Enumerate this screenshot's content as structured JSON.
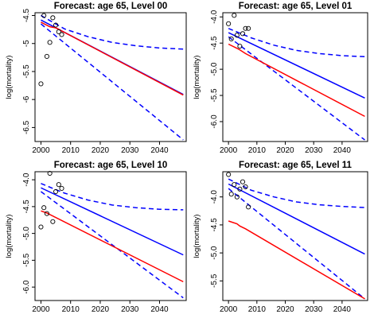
{
  "chart_data": [
    {
      "type": "line",
      "title": "Forecast: age 65, Level 00",
      "xlabel": "",
      "ylabel": "log(mortality)",
      "xlim": [
        1998,
        2049
      ],
      "ylim": [
        -6.75,
        -4.45
      ],
      "xticks": [
        2000,
        2010,
        2020,
        2030,
        2040
      ],
      "yticks": [
        -4.5,
        -5,
        -5.5,
        -6,
        -6.5
      ],
      "ytick_labels": [
        "-4.5",
        "-5",
        "-5.5",
        "-6",
        "-6.5"
      ],
      "observed": {
        "x": [
          2000,
          2001,
          2002,
          2003,
          2004,
          2005,
          2006,
          2007
        ],
        "y": [
          -5.72,
          -4.5,
          -5.23,
          -4.98,
          -4.54,
          -4.67,
          -4.79,
          -4.84
        ]
      },
      "series": [
        {
          "role": "forecast",
          "color": "#0000ff",
          "dash": "solid",
          "x": [
            2000,
            2048
          ],
          "y": [
            -4.58,
            -5.91
          ]
        },
        {
          "role": "upper-band",
          "color": "#0000ff",
          "dash": "dashed",
          "x": [
            2000,
            2008,
            2016,
            2024,
            2032,
            2040,
            2048
          ],
          "y": [
            -4.5,
            -4.74,
            -4.88,
            -4.98,
            -5.04,
            -5.08,
            -5.1
          ]
        },
        {
          "role": "lower-band",
          "color": "#0000ff",
          "dash": "dashed",
          "x": [
            2000,
            2048
          ],
          "y": [
            -4.65,
            -6.72
          ]
        },
        {
          "role": "fitted",
          "color": "#ff0000",
          "dash": "solid",
          "x": [
            2000,
            2003,
            2005,
            2048
          ],
          "y": [
            -4.62,
            -4.7,
            -4.72,
            -5.92
          ]
        }
      ]
    },
    {
      "type": "line",
      "title": "Forecast: age 65, Level 01",
      "xlabel": "",
      "ylabel": "log(mortality)",
      "xlim": [
        1998,
        2049
      ],
      "ylim": [
        -6.38,
        -3.92
      ],
      "xticks": [
        2000,
        2010,
        2020,
        2030,
        2040
      ],
      "yticks": [
        -4,
        -4.5,
        -5,
        -5.5,
        -6
      ],
      "ytick_labels": [
        "-4.0",
        "-4.5",
        "-5.0",
        "-5.5",
        "-6.0"
      ],
      "observed": {
        "x": [
          2000,
          2001,
          2002,
          2003,
          2004,
          2005,
          2006,
          2007
        ],
        "y": [
          -4.13,
          -4.42,
          -3.97,
          -4.35,
          -4.56,
          -4.32,
          -4.22,
          -4.22
        ]
      },
      "series": [
        {
          "role": "forecast",
          "color": "#0000ff",
          "dash": "solid",
          "x": [
            2000,
            2048
          ],
          "y": [
            -4.3,
            -5.55
          ]
        },
        {
          "role": "upper-band",
          "color": "#0000ff",
          "dash": "dashed",
          "x": [
            2000,
            2008,
            2016,
            2024,
            2032,
            2040,
            2048
          ],
          "y": [
            -4.22,
            -4.4,
            -4.54,
            -4.64,
            -4.7,
            -4.74,
            -4.76
          ]
        },
        {
          "role": "lower-band",
          "color": "#0000ff",
          "dash": "dashed",
          "x": [
            2000,
            2048
          ],
          "y": [
            -4.38,
            -6.35
          ]
        },
        {
          "role": "fitted",
          "color": "#ff0000",
          "dash": "solid",
          "x": [
            2000,
            2003,
            2004,
            2006,
            2048
          ],
          "y": [
            -4.52,
            -4.6,
            -4.63,
            -4.7,
            -5.9
          ]
        }
      ]
    },
    {
      "type": "line",
      "title": "Forecast: age 65, Level 10",
      "xlabel": "",
      "ylabel": "log(mortality)",
      "xlim": [
        1998,
        2049
      ],
      "ylim": [
        -6.25,
        -3.85
      ],
      "xticks": [
        2000,
        2010,
        2020,
        2030,
        2040
      ],
      "yticks": [
        -4,
        -4.5,
        -5,
        -5.5,
        -6
      ],
      "ytick_labels": [
        "-4.0",
        "-4.5",
        "-5.0",
        "-5.5",
        "-6.0"
      ],
      "observed": {
        "x": [
          2000,
          2001,
          2002,
          2003,
          2004,
          2005,
          2006,
          2007
        ],
        "y": [
          -4.88,
          -4.52,
          -4.63,
          -3.88,
          -4.78,
          -4.22,
          -4.09,
          -4.16
        ]
      },
      "series": [
        {
          "role": "forecast",
          "color": "#0000ff",
          "dash": "solid",
          "x": [
            2000,
            2048
          ],
          "y": [
            -4.15,
            -5.4
          ]
        },
        {
          "role": "upper-band",
          "color": "#0000ff",
          "dash": "dashed",
          "x": [
            2000,
            2008,
            2016,
            2024,
            2032,
            2040,
            2048
          ],
          "y": [
            -4.07,
            -4.25,
            -4.38,
            -4.47,
            -4.52,
            -4.55,
            -4.56
          ]
        },
        {
          "role": "lower-band",
          "color": "#0000ff",
          "dash": "dashed",
          "x": [
            2000,
            2048
          ],
          "y": [
            -4.22,
            -6.2
          ]
        },
        {
          "role": "fitted",
          "color": "#ff0000",
          "dash": "solid",
          "x": [
            2000,
            2002,
            2048
          ],
          "y": [
            -4.58,
            -4.62,
            -5.9
          ]
        }
      ]
    },
    {
      "type": "line",
      "title": "Forecast: age 65, Level 11",
      "xlabel": "",
      "ylabel": "log(mortality)",
      "xlim": [
        1998,
        2049
      ],
      "ylim": [
        -5.85,
        -3.55
      ],
      "xticks": [
        2000,
        2010,
        2020,
        2030,
        2040
      ],
      "yticks": [
        -4,
        -4.5,
        -5,
        -5.5
      ],
      "ytick_labels": [
        "-4.0",
        "-4.5",
        "-5.0",
        "-5.5"
      ],
      "observed": {
        "x": [
          2000,
          2001,
          2002,
          2003,
          2004,
          2005,
          2006,
          2007
        ],
        "y": [
          -3.6,
          -3.95,
          -3.78,
          -4.0,
          -3.86,
          -3.73,
          -3.82,
          -4.18
        ]
      },
      "series": [
        {
          "role": "forecast",
          "color": "#0000ff",
          "dash": "solid",
          "x": [
            2000,
            2048
          ],
          "y": [
            -3.77,
            -5.02
          ]
        },
        {
          "role": "upper-band",
          "color": "#0000ff",
          "dash": "dashed",
          "x": [
            2000,
            2008,
            2016,
            2024,
            2032,
            2040,
            2048
          ],
          "y": [
            -3.68,
            -3.88,
            -4.0,
            -4.09,
            -4.14,
            -4.17,
            -4.19
          ]
        },
        {
          "role": "lower-band",
          "color": "#0000ff",
          "dash": "dashed",
          "x": [
            2000,
            2048
          ],
          "y": [
            -3.85,
            -5.82
          ]
        },
        {
          "role": "fitted",
          "color": "#ff0000",
          "dash": "solid",
          "x": [
            2000,
            2003,
            2004,
            2006,
            2048
          ],
          "y": [
            -4.43,
            -4.48,
            -4.52,
            -4.57,
            -5.82
          ]
        }
      ]
    }
  ]
}
